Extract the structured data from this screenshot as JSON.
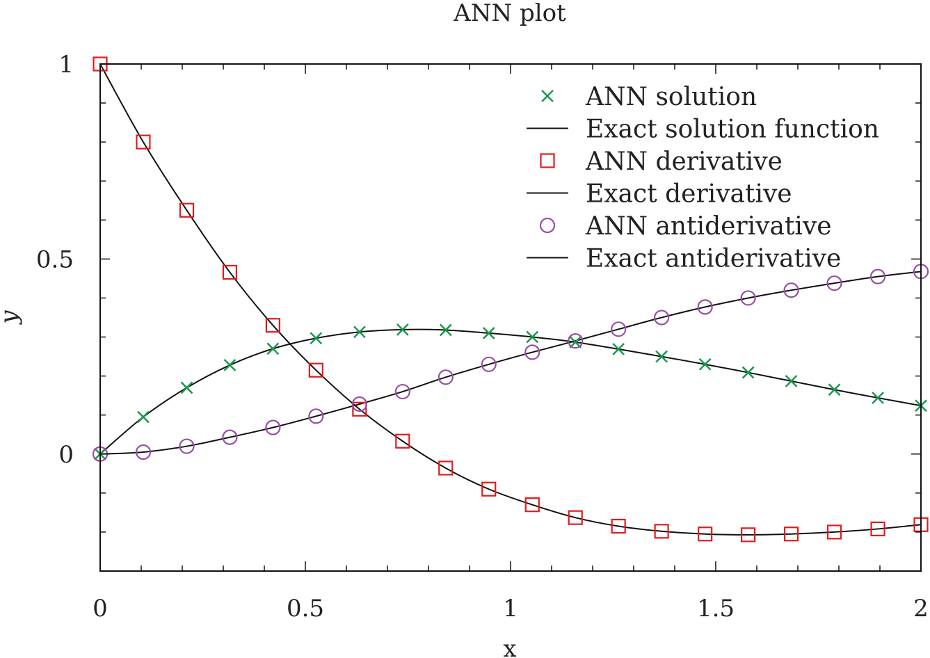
{
  "chart_data": {
    "type": "line",
    "title": "ANN plot",
    "xlabel": "x",
    "ylabel": "y",
    "xlim": [
      0,
      2
    ],
    "ylim": [
      -0.3,
      1
    ],
    "xticks": [
      "0",
      "0.5",
      "1",
      "1.5",
      "2"
    ],
    "xtick_values": [
      0,
      0.5,
      1,
      1.5,
      2
    ],
    "yticks": [
      "0",
      "0.5",
      "1"
    ],
    "ytick_values": [
      0,
      0.5,
      1
    ],
    "grid": false,
    "legend_position": "top-right",
    "marker_x": [
      0,
      0.105,
      0.211,
      0.316,
      0.421,
      0.526,
      0.632,
      0.737,
      0.842,
      0.947,
      1.053,
      1.158,
      1.263,
      1.368,
      1.474,
      1.579,
      1.684,
      1.789,
      1.895,
      2.0
    ],
    "series": [
      {
        "name": "ANN solution",
        "kind": "marker",
        "marker": "cross",
        "color": "#1a9850",
        "values": [
          0.0,
          0.095,
          0.17,
          0.228,
          0.27,
          0.297,
          0.313,
          0.319,
          0.318,
          0.31,
          0.3,
          0.287,
          0.269,
          0.25,
          0.23,
          0.209,
          0.187,
          0.165,
          0.144,
          0.124
        ]
      },
      {
        "name": "Exact solution function",
        "kind": "line",
        "color": "#111111",
        "fn": "x*exp(-x^2/... )"
      },
      {
        "name": "ANN derivative",
        "kind": "marker",
        "marker": "square",
        "color": "#e31a1c",
        "values": [
          1.0,
          0.8,
          0.625,
          0.466,
          0.33,
          0.215,
          0.115,
          0.033,
          -0.036,
          -0.09,
          -0.13,
          -0.163,
          -0.185,
          -0.198,
          -0.205,
          -0.207,
          -0.205,
          -0.2,
          -0.192,
          -0.181
        ]
      },
      {
        "name": "Exact derivative",
        "kind": "line",
        "color": "#111111"
      },
      {
        "name": "ANN antiderivative",
        "kind": "marker",
        "marker": "circle",
        "color": "#984ea3",
        "values": [
          0.0,
          0.005,
          0.02,
          0.043,
          0.068,
          0.097,
          0.128,
          0.16,
          0.197,
          0.23,
          0.261,
          0.29,
          0.32,
          0.35,
          0.377,
          0.4,
          0.42,
          0.438,
          0.455,
          0.468
        ]
      },
      {
        "name": "Exact antiderivative",
        "kind": "line",
        "color": "#111111"
      }
    ]
  }
}
